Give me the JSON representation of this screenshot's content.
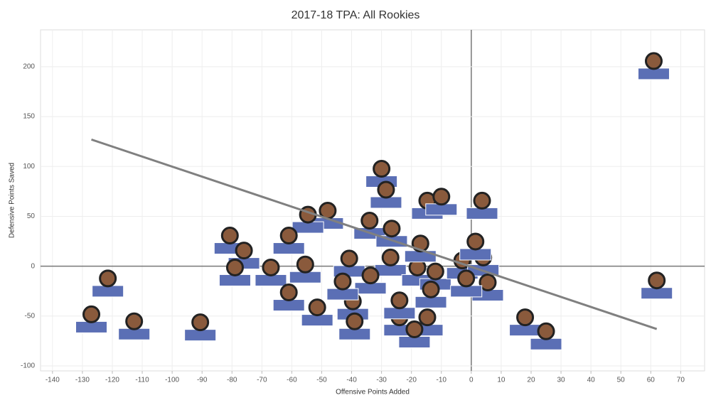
{
  "chart_data": {
    "type": "scatter",
    "title": "2017-18 TPA: All Rookies",
    "x_label": "Offensive Points Added",
    "y_label": "Defensive Points Saved",
    "x": [
      61,
      62,
      -121.5,
      -127,
      -112.7,
      -90.6,
      -30,
      -28.5,
      -14.7,
      -10,
      3.6,
      -48,
      -54.6,
      -80.7,
      -61,
      -34,
      -26.6,
      -76,
      -79,
      -67,
      -55.5,
      -40.8,
      -27,
      -18,
      -12,
      -3,
      4,
      -17,
      1.4,
      -61,
      -51.5,
      -39.6,
      -39,
      -24,
      -14.7,
      -19,
      -24,
      -13.5,
      5.5,
      -1.7,
      18,
      25,
      -33.7,
      -43
    ],
    "y": [
      200,
      -20,
      -18,
      -54,
      -61,
      -62,
      92,
      71,
      60,
      64,
      60,
      50,
      46,
      25,
      25,
      40,
      32,
      10,
      -7,
      -7,
      -4,
      2,
      3,
      -7,
      -11,
      0,
      3,
      17,
      19,
      -32,
      -47,
      -41,
      -61,
      -57,
      -57,
      -69,
      -40,
      -29,
      -22,
      -18,
      -57,
      -71,
      -15,
      -21
    ],
    "color": "#5b6fb5",
    "trendline": {
      "x": [
        -127,
        62
      ],
      "y": [
        127,
        -63
      ],
      "color": "#808080"
    },
    "xlim": [
      -144,
      78
    ],
    "ylim": [
      -105,
      237
    ],
    "xticks": [
      -140,
      -130,
      -120,
      -110,
      -100,
      -90,
      -80,
      -70,
      -60,
      -50,
      -40,
      -30,
      -20,
      -10,
      0,
      10,
      20,
      30,
      40,
      50,
      60,
      70
    ],
    "yticks": [
      -100,
      -50,
      0,
      50,
      100,
      150,
      200
    ],
    "grid": true
  }
}
